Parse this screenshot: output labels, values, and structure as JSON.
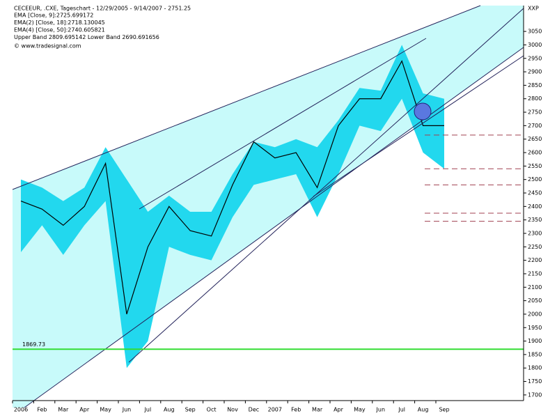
{
  "chart_data": {
    "type": "line",
    "title": "CECEEUR, .CXE, Tageschart - 12/29/2005 - 9/14/2007 - 2751.25",
    "legend_lines": [
      {
        "text": "EMA [Close, 9]:2725.699172",
        "color": "#2e8b2e"
      },
      {
        "text": "EMA(2) [Close, 18]:2718.130045",
        "color": "#000000"
      },
      {
        "text": "EMA(4) [Close, 50]:2740.605821",
        "color": "#1a1ab0"
      },
      {
        "text": "Upper Band 2809.695142 Lower Band 2690.691656",
        "color": "#d8d820"
      }
    ],
    "source": "© www.tradesignal.com",
    "axis_label": "XXP",
    "categories": [
      "2006",
      "Feb",
      "Mar",
      "Apr",
      "May",
      "Jun",
      "Jul",
      "Aug",
      "Sep",
      "Oct",
      "Nov",
      "Dec",
      "2007",
      "Feb",
      "Mar",
      "Apr",
      "May",
      "Jun",
      "Jul",
      "Aug",
      "Sep"
    ],
    "series": [
      {
        "name": "CECEEUR",
        "color": "#000000",
        "values": [
          2420,
          2390,
          2330,
          2400,
          2560,
          2000,
          2250,
          2400,
          2310,
          2290,
          2480,
          2640,
          2580,
          2600,
          2470,
          2700,
          2800,
          2800,
          2940,
          2700,
          2700
        ]
      },
      {
        "name": "Upper Band",
        "color": "#22d8ee",
        "values": [
          2500,
          2470,
          2420,
          2470,
          2620,
          2500,
          2380,
          2440,
          2380,
          2380,
          2520,
          2640,
          2620,
          2650,
          2620,
          2720,
          2840,
          2830,
          3000,
          2820,
          2800
        ]
      },
      {
        "name": "Lower Band",
        "color": "#22d8ee",
        "values": [
          2230,
          2330,
          2220,
          2330,
          2420,
          1800,
          1900,
          2250,
          2220,
          2200,
          2360,
          2480,
          2500,
          2520,
          2360,
          2520,
          2700,
          2680,
          2800,
          2600,
          2540
        ]
      }
    ],
    "hline": {
      "value": 1869.73,
      "color": "#33dd33"
    },
    "dashed_levels": [
      2665,
      2540,
      2480,
      2375,
      2345
    ],
    "ylim": [
      1679,
      3146
    ],
    "yticks": [
      1700,
      1750,
      1800,
      1850,
      1900,
      1950,
      2000,
      2050,
      2100,
      2150,
      2200,
      2250,
      2300,
      2350,
      2400,
      2450,
      2500,
      2550,
      2600,
      2650,
      2700,
      2750,
      2800,
      2850,
      2900,
      2950,
      3000,
      3050
    ]
  }
}
